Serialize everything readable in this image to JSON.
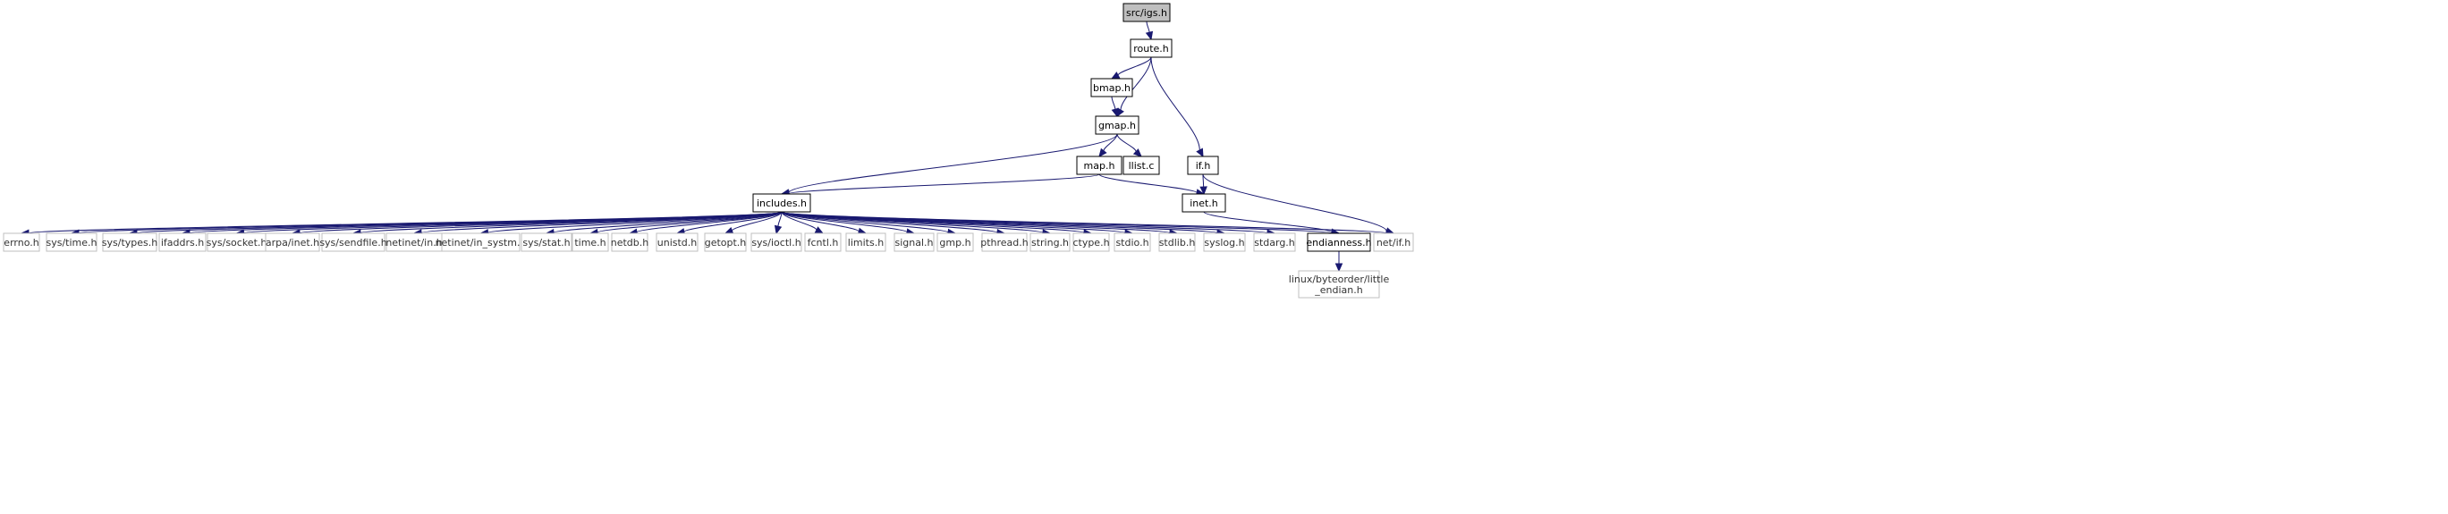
{
  "nodes": [
    {
      "id": "src_igs",
      "label": "src/igs.h",
      "kind": "root"
    },
    {
      "id": "route",
      "label": "route.h",
      "kind": "internal"
    },
    {
      "id": "bmap",
      "label": "bmap.h",
      "kind": "internal"
    },
    {
      "id": "gmap",
      "label": "gmap.h",
      "kind": "internal"
    },
    {
      "id": "map",
      "label": "map.h",
      "kind": "internal"
    },
    {
      "id": "llist",
      "label": "llist.c",
      "kind": "internal"
    },
    {
      "id": "if",
      "label": "if.h",
      "kind": "internal"
    },
    {
      "id": "includes",
      "label": "includes.h",
      "kind": "internal"
    },
    {
      "id": "inet",
      "label": "inet.h",
      "kind": "internal"
    },
    {
      "id": "endianness",
      "label": "endianness.h",
      "kind": "internal"
    },
    {
      "id": "errno",
      "label": "errno.h",
      "kind": "external"
    },
    {
      "id": "sys_time",
      "label": "sys/time.h",
      "kind": "external"
    },
    {
      "id": "sys_types",
      "label": "sys/types.h",
      "kind": "external"
    },
    {
      "id": "ifaddrs",
      "label": "ifaddrs.h",
      "kind": "external"
    },
    {
      "id": "sys_socket",
      "label": "sys/socket.h",
      "kind": "external"
    },
    {
      "id": "arpa_inet",
      "label": "arpa/inet.h",
      "kind": "external"
    },
    {
      "id": "sys_sendfile",
      "label": "sys/sendfile.h",
      "kind": "external"
    },
    {
      "id": "netinet_in",
      "label": "netinet/in.h",
      "kind": "external"
    },
    {
      "id": "netinet_in_systm",
      "label": "netinet/in_systm.h",
      "kind": "external"
    },
    {
      "id": "sys_stat",
      "label": "sys/stat.h",
      "kind": "external"
    },
    {
      "id": "time",
      "label": "time.h",
      "kind": "external"
    },
    {
      "id": "netdb",
      "label": "netdb.h",
      "kind": "external"
    },
    {
      "id": "unistd",
      "label": "unistd.h",
      "kind": "external"
    },
    {
      "id": "getopt",
      "label": "getopt.h",
      "kind": "external"
    },
    {
      "id": "sys_ioctl",
      "label": "sys/ioctl.h",
      "kind": "external"
    },
    {
      "id": "fcntl",
      "label": "fcntl.h",
      "kind": "external"
    },
    {
      "id": "limits",
      "label": "limits.h",
      "kind": "external"
    },
    {
      "id": "signal",
      "label": "signal.h",
      "kind": "external"
    },
    {
      "id": "gmp",
      "label": "gmp.h",
      "kind": "external"
    },
    {
      "id": "pthread",
      "label": "pthread.h",
      "kind": "external"
    },
    {
      "id": "string",
      "label": "string.h",
      "kind": "external"
    },
    {
      "id": "ctype",
      "label": "ctype.h",
      "kind": "external"
    },
    {
      "id": "stdio",
      "label": "stdio.h",
      "kind": "external"
    },
    {
      "id": "stdlib",
      "label": "stdlib.h",
      "kind": "external"
    },
    {
      "id": "syslog",
      "label": "syslog.h",
      "kind": "external"
    },
    {
      "id": "stdarg",
      "label": "stdarg.h",
      "kind": "external"
    },
    {
      "id": "net_if",
      "label": "net/if.h",
      "kind": "external"
    },
    {
      "id": "linux_little_endian",
      "label": "linux/byteorder/little\n_endian.h",
      "kind": "external"
    }
  ],
  "edges": [
    [
      "src_igs",
      "route"
    ],
    [
      "route",
      "bmap"
    ],
    [
      "route",
      "gmap"
    ],
    [
      "route",
      "if"
    ],
    [
      "bmap",
      "gmap"
    ],
    [
      "gmap",
      "includes"
    ],
    [
      "gmap",
      "map"
    ],
    [
      "gmap",
      "llist"
    ],
    [
      "map",
      "includes"
    ],
    [
      "map",
      "inet"
    ],
    [
      "if",
      "inet"
    ],
    [
      "if",
      "net_if"
    ],
    [
      "inet",
      "endianness"
    ],
    [
      "endianness",
      "linux_little_endian"
    ],
    [
      "includes",
      "errno"
    ],
    [
      "includes",
      "sys_time"
    ],
    [
      "includes",
      "sys_types"
    ],
    [
      "includes",
      "ifaddrs"
    ],
    [
      "includes",
      "sys_socket"
    ],
    [
      "includes",
      "arpa_inet"
    ],
    [
      "includes",
      "sys_sendfile"
    ],
    [
      "includes",
      "netinet_in"
    ],
    [
      "includes",
      "netinet_in_systm"
    ],
    [
      "includes",
      "sys_stat"
    ],
    [
      "includes",
      "time"
    ],
    [
      "includes",
      "netdb"
    ],
    [
      "includes",
      "unistd"
    ],
    [
      "includes",
      "getopt"
    ],
    [
      "includes",
      "sys_ioctl"
    ],
    [
      "includes",
      "fcntl"
    ],
    [
      "includes",
      "limits"
    ],
    [
      "includes",
      "signal"
    ],
    [
      "includes",
      "gmp"
    ],
    [
      "includes",
      "pthread"
    ],
    [
      "includes",
      "string"
    ],
    [
      "includes",
      "ctype"
    ],
    [
      "includes",
      "stdio"
    ],
    [
      "includes",
      "stdlib"
    ],
    [
      "includes",
      "syslog"
    ],
    [
      "includes",
      "stdarg"
    ],
    [
      "includes",
      "endianness"
    ],
    [
      "includes",
      "net_if"
    ]
  ],
  "colors": {
    "edge": "#191970",
    "root_fill": "#bfbfbf",
    "internal_border": "#000000",
    "external_border": "#bfbfbf"
  }
}
